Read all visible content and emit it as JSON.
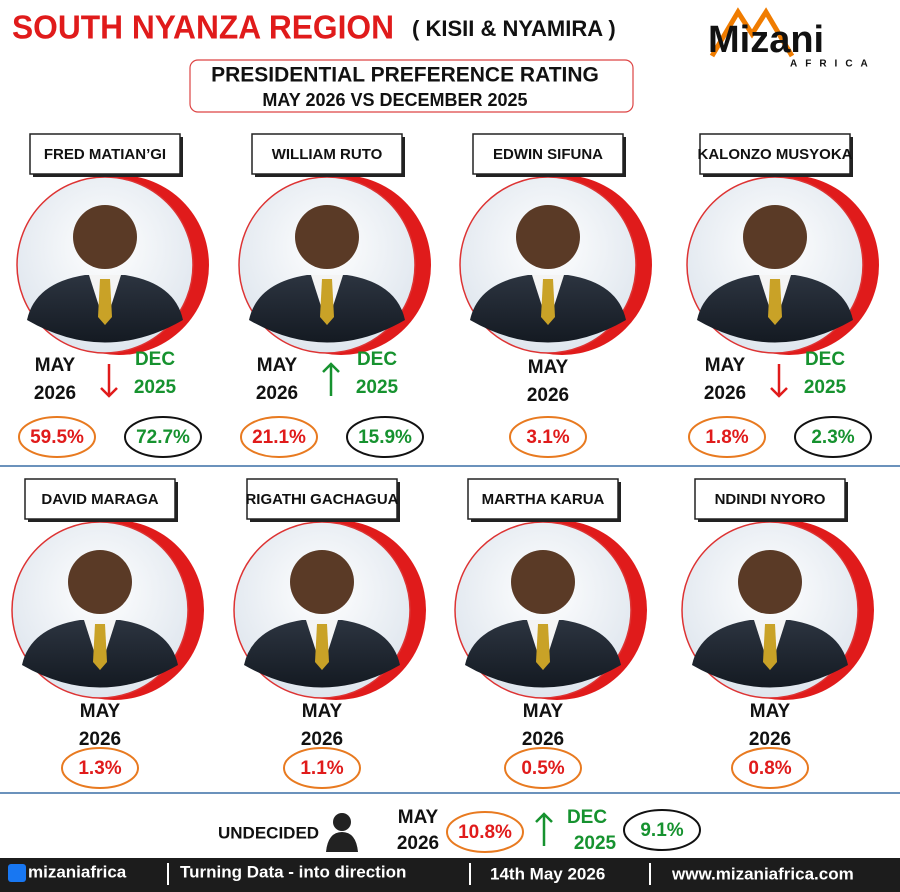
{
  "header": {
    "title": "SOUTH NYANZA REGION",
    "subtitle": "( KISII & NYAMIRA )",
    "logo": "Mizani",
    "logo_sub": "AFRICA",
    "box_title": "PRESIDENTIAL PREFERENCE RATING",
    "box_subtitle": "MAY 2026 VS DECEMBER 2025"
  },
  "labels": {
    "may_month": "MAY",
    "may_year": "2026",
    "dec_month": "DEC",
    "dec_year": "2025"
  },
  "candidates": [
    {
      "name": "FRED MATIAN’GI",
      "may": "59.5%",
      "dec": "72.7%",
      "trend": "down"
    },
    {
      "name": "WILLIAM RUTO",
      "may": "21.1%",
      "dec": "15.9%",
      "trend": "up"
    },
    {
      "name": "EDWIN SIFUNA",
      "may": "3.1%"
    },
    {
      "name": "KALONZO MUSYOKA",
      "may": "1.8%",
      "dec": "2.3%",
      "trend": "down"
    },
    {
      "name": "DAVID MARAGA",
      "may": "1.3%"
    },
    {
      "name": "RIGATHI GACHAGUA",
      "may": "1.1%"
    },
    {
      "name": "MARTHA KARUA",
      "may": "0.5%"
    },
    {
      "name": "NDINDI NYORO",
      "may": "0.8%"
    }
  ],
  "undecided": {
    "label": "UNDECIDED",
    "may": "10.8%",
    "dec": "9.1%",
    "trend": "up"
  },
  "footer": {
    "handle": "mizaniafrica",
    "tagline": "Turning Data - into direction",
    "date": "14th May 2026",
    "website": "www.mizaniafrica.com"
  }
}
